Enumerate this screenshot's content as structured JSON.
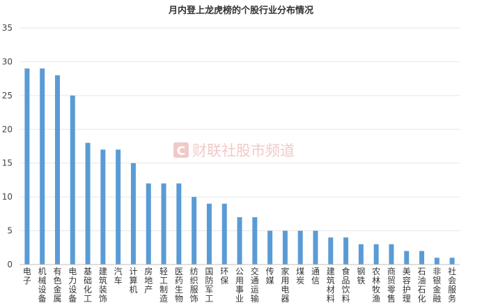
{
  "chart_data": {
    "type": "bar",
    "title": "月内登上龙虎榜的个股行业分布情况",
    "categories": [
      "电子",
      "机械设备",
      "有色金属",
      "电力设备",
      "基础化工",
      "建筑装饰",
      "汽车",
      "计算机",
      "房地产",
      "轻工制造",
      "医药生物",
      "纺织服饰",
      "国防军工",
      "环保",
      "公用事业",
      "交通运输",
      "传媒",
      "家用电器",
      "煤炭",
      "通信",
      "建筑材料",
      "食品饮料",
      "钢铁",
      "农林牧渔",
      "商贸零售",
      "美容护理",
      "石油石化",
      "非银金融",
      "社会服务"
    ],
    "values": [
      29,
      29,
      28,
      25,
      18,
      17,
      17,
      15,
      12,
      12,
      12,
      10,
      9,
      9,
      7,
      7,
      5,
      5,
      5,
      5,
      4,
      4,
      3,
      3,
      3,
      2,
      2,
      1,
      1
    ],
    "ylim": [
      0,
      35
    ],
    "yticks": [
      "0",
      "5",
      "10",
      "15",
      "20",
      "25",
      "30",
      "35"
    ],
    "grid": true,
    "legend": "none",
    "bar_color": "#5b9bd5"
  },
  "watermark": {
    "text": "财联社股市频道",
    "logo_letter": "C",
    "color": "#e57373"
  }
}
